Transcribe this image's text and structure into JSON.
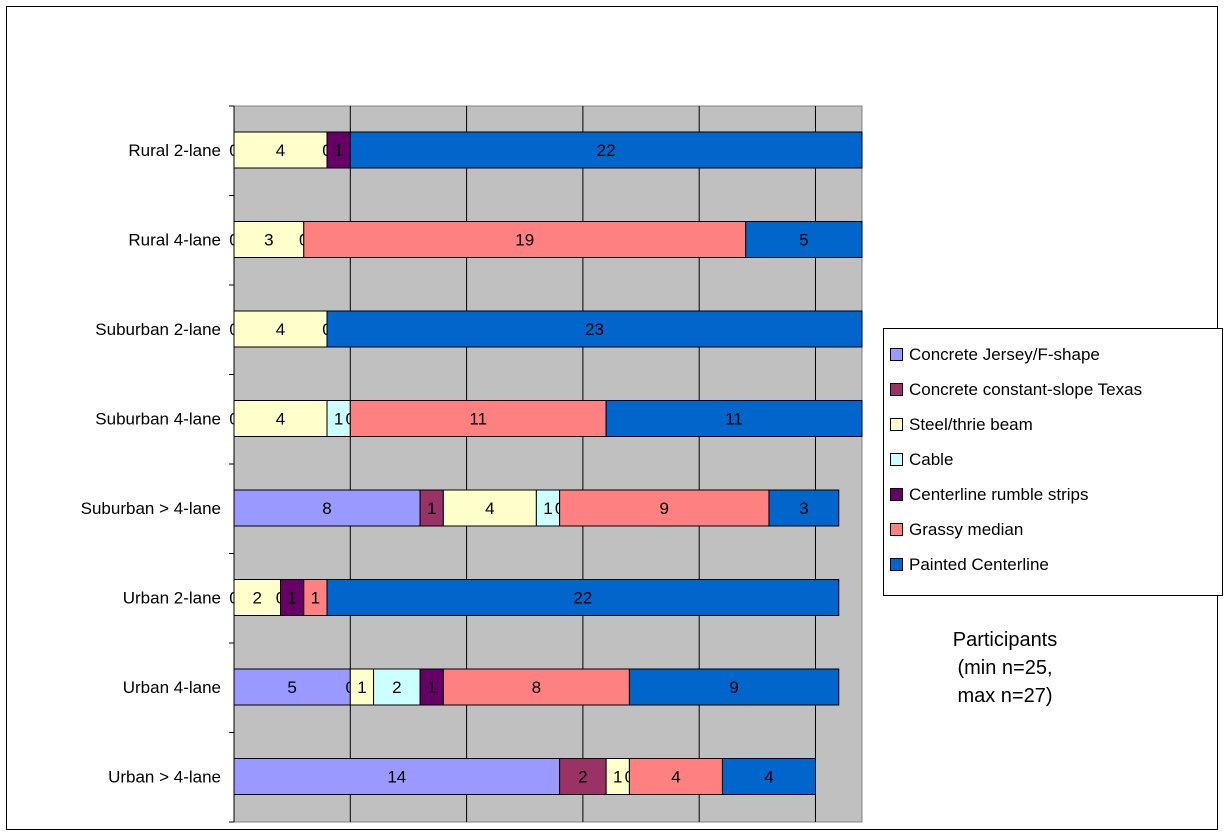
{
  "chart_data": {
    "type": "bar",
    "orientation": "horizontal",
    "stacked": true,
    "categories": [
      "Rural 2-lane",
      "Rural 4-lane",
      "Suburban 2-lane",
      "Suburban 4-lane",
      "Suburban > 4-lane",
      "Urban 2-lane",
      "Urban 4-lane",
      "Urban > 4-lane"
    ],
    "series": [
      {
        "name": "Concrete Jersey/F-shape",
        "color": "#9999ff",
        "values": [
          0,
          0,
          0,
          0,
          8,
          0,
          5,
          14
        ]
      },
      {
        "name": "Concrete constant-slope Texas",
        "color": "#993366",
        "values": [
          0,
          0,
          0,
          0,
          1,
          0,
          0,
          2
        ]
      },
      {
        "name": "Steel/thrie beam",
        "color": "#ffffcc",
        "values": [
          4,
          3,
          4,
          4,
          4,
          2,
          1,
          1
        ]
      },
      {
        "name": "Cable",
        "color": "#ccffff",
        "values": [
          0,
          0,
          0,
          1,
          1,
          0,
          2,
          0
        ]
      },
      {
        "name": "Centerline rumble strips",
        "color": "#660066",
        "values": [
          1,
          0,
          0,
          0,
          0,
          1,
          1,
          0
        ]
      },
      {
        "name": "Grassy median",
        "color": "#ff8080",
        "values": [
          0,
          19,
          0,
          11,
          9,
          1,
          8,
          4
        ]
      },
      {
        "name": "Painted Centerline",
        "color": "#0066cc",
        "values": [
          22,
          5,
          23,
          11,
          3,
          22,
          9,
          4
        ]
      }
    ],
    "legend_position": "right",
    "grid": true,
    "plot_background": "#c0c0c0",
    "note": "Participants\n(min n=25,\nmax n=27)"
  }
}
